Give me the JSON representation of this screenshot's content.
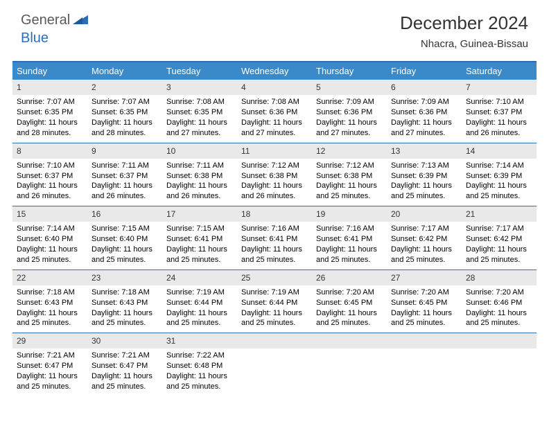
{
  "logo": {
    "general": "General",
    "blue": "Blue",
    "accent_color": "#2a6fb5",
    "text_color": "#5a5a5a"
  },
  "title": "December 2024",
  "location": "Nhacra, Guinea-Bissau",
  "colors": {
    "header_bar": "#3a8ac9",
    "divider": "#2a6fb5",
    "daynum_bg": "#e9e9e9",
    "text": "#000000",
    "background": "#ffffff"
  },
  "day_names": [
    "Sunday",
    "Monday",
    "Tuesday",
    "Wednesday",
    "Thursday",
    "Friday",
    "Saturday"
  ],
  "weeks": [
    [
      {
        "n": "1",
        "sr": "Sunrise: 7:07 AM",
        "ss": "Sunset: 6:35 PM",
        "d1": "Daylight: 11 hours",
        "d2": "and 28 minutes."
      },
      {
        "n": "2",
        "sr": "Sunrise: 7:07 AM",
        "ss": "Sunset: 6:35 PM",
        "d1": "Daylight: 11 hours",
        "d2": "and 28 minutes."
      },
      {
        "n": "3",
        "sr": "Sunrise: 7:08 AM",
        "ss": "Sunset: 6:35 PM",
        "d1": "Daylight: 11 hours",
        "d2": "and 27 minutes."
      },
      {
        "n": "4",
        "sr": "Sunrise: 7:08 AM",
        "ss": "Sunset: 6:36 PM",
        "d1": "Daylight: 11 hours",
        "d2": "and 27 minutes."
      },
      {
        "n": "5",
        "sr": "Sunrise: 7:09 AM",
        "ss": "Sunset: 6:36 PM",
        "d1": "Daylight: 11 hours",
        "d2": "and 27 minutes."
      },
      {
        "n": "6",
        "sr": "Sunrise: 7:09 AM",
        "ss": "Sunset: 6:36 PM",
        "d1": "Daylight: 11 hours",
        "d2": "and 27 minutes."
      },
      {
        "n": "7",
        "sr": "Sunrise: 7:10 AM",
        "ss": "Sunset: 6:37 PM",
        "d1": "Daylight: 11 hours",
        "d2": "and 26 minutes."
      }
    ],
    [
      {
        "n": "8",
        "sr": "Sunrise: 7:10 AM",
        "ss": "Sunset: 6:37 PM",
        "d1": "Daylight: 11 hours",
        "d2": "and 26 minutes."
      },
      {
        "n": "9",
        "sr": "Sunrise: 7:11 AM",
        "ss": "Sunset: 6:37 PM",
        "d1": "Daylight: 11 hours",
        "d2": "and 26 minutes."
      },
      {
        "n": "10",
        "sr": "Sunrise: 7:11 AM",
        "ss": "Sunset: 6:38 PM",
        "d1": "Daylight: 11 hours",
        "d2": "and 26 minutes."
      },
      {
        "n": "11",
        "sr": "Sunrise: 7:12 AM",
        "ss": "Sunset: 6:38 PM",
        "d1": "Daylight: 11 hours",
        "d2": "and 26 minutes."
      },
      {
        "n": "12",
        "sr": "Sunrise: 7:12 AM",
        "ss": "Sunset: 6:38 PM",
        "d1": "Daylight: 11 hours",
        "d2": "and 25 minutes."
      },
      {
        "n": "13",
        "sr": "Sunrise: 7:13 AM",
        "ss": "Sunset: 6:39 PM",
        "d1": "Daylight: 11 hours",
        "d2": "and 25 minutes."
      },
      {
        "n": "14",
        "sr": "Sunrise: 7:14 AM",
        "ss": "Sunset: 6:39 PM",
        "d1": "Daylight: 11 hours",
        "d2": "and 25 minutes."
      }
    ],
    [
      {
        "n": "15",
        "sr": "Sunrise: 7:14 AM",
        "ss": "Sunset: 6:40 PM",
        "d1": "Daylight: 11 hours",
        "d2": "and 25 minutes."
      },
      {
        "n": "16",
        "sr": "Sunrise: 7:15 AM",
        "ss": "Sunset: 6:40 PM",
        "d1": "Daylight: 11 hours",
        "d2": "and 25 minutes."
      },
      {
        "n": "17",
        "sr": "Sunrise: 7:15 AM",
        "ss": "Sunset: 6:41 PM",
        "d1": "Daylight: 11 hours",
        "d2": "and 25 minutes."
      },
      {
        "n": "18",
        "sr": "Sunrise: 7:16 AM",
        "ss": "Sunset: 6:41 PM",
        "d1": "Daylight: 11 hours",
        "d2": "and 25 minutes."
      },
      {
        "n": "19",
        "sr": "Sunrise: 7:16 AM",
        "ss": "Sunset: 6:41 PM",
        "d1": "Daylight: 11 hours",
        "d2": "and 25 minutes."
      },
      {
        "n": "20",
        "sr": "Sunrise: 7:17 AM",
        "ss": "Sunset: 6:42 PM",
        "d1": "Daylight: 11 hours",
        "d2": "and 25 minutes."
      },
      {
        "n": "21",
        "sr": "Sunrise: 7:17 AM",
        "ss": "Sunset: 6:42 PM",
        "d1": "Daylight: 11 hours",
        "d2": "and 25 minutes."
      }
    ],
    [
      {
        "n": "22",
        "sr": "Sunrise: 7:18 AM",
        "ss": "Sunset: 6:43 PM",
        "d1": "Daylight: 11 hours",
        "d2": "and 25 minutes."
      },
      {
        "n": "23",
        "sr": "Sunrise: 7:18 AM",
        "ss": "Sunset: 6:43 PM",
        "d1": "Daylight: 11 hours",
        "d2": "and 25 minutes."
      },
      {
        "n": "24",
        "sr": "Sunrise: 7:19 AM",
        "ss": "Sunset: 6:44 PM",
        "d1": "Daylight: 11 hours",
        "d2": "and 25 minutes."
      },
      {
        "n": "25",
        "sr": "Sunrise: 7:19 AM",
        "ss": "Sunset: 6:44 PM",
        "d1": "Daylight: 11 hours",
        "d2": "and 25 minutes."
      },
      {
        "n": "26",
        "sr": "Sunrise: 7:20 AM",
        "ss": "Sunset: 6:45 PM",
        "d1": "Daylight: 11 hours",
        "d2": "and 25 minutes."
      },
      {
        "n": "27",
        "sr": "Sunrise: 7:20 AM",
        "ss": "Sunset: 6:45 PM",
        "d1": "Daylight: 11 hours",
        "d2": "and 25 minutes."
      },
      {
        "n": "28",
        "sr": "Sunrise: 7:20 AM",
        "ss": "Sunset: 6:46 PM",
        "d1": "Daylight: 11 hours",
        "d2": "and 25 minutes."
      }
    ],
    [
      {
        "n": "29",
        "sr": "Sunrise: 7:21 AM",
        "ss": "Sunset: 6:47 PM",
        "d1": "Daylight: 11 hours",
        "d2": "and 25 minutes."
      },
      {
        "n": "30",
        "sr": "Sunrise: 7:21 AM",
        "ss": "Sunset: 6:47 PM",
        "d1": "Daylight: 11 hours",
        "d2": "and 25 minutes."
      },
      {
        "n": "31",
        "sr": "Sunrise: 7:22 AM",
        "ss": "Sunset: 6:48 PM",
        "d1": "Daylight: 11 hours",
        "d2": "and 25 minutes."
      },
      {
        "n": "",
        "sr": "",
        "ss": "",
        "d1": "",
        "d2": ""
      },
      {
        "n": "",
        "sr": "",
        "ss": "",
        "d1": "",
        "d2": ""
      },
      {
        "n": "",
        "sr": "",
        "ss": "",
        "d1": "",
        "d2": ""
      },
      {
        "n": "",
        "sr": "",
        "ss": "",
        "d1": "",
        "d2": ""
      }
    ]
  ]
}
